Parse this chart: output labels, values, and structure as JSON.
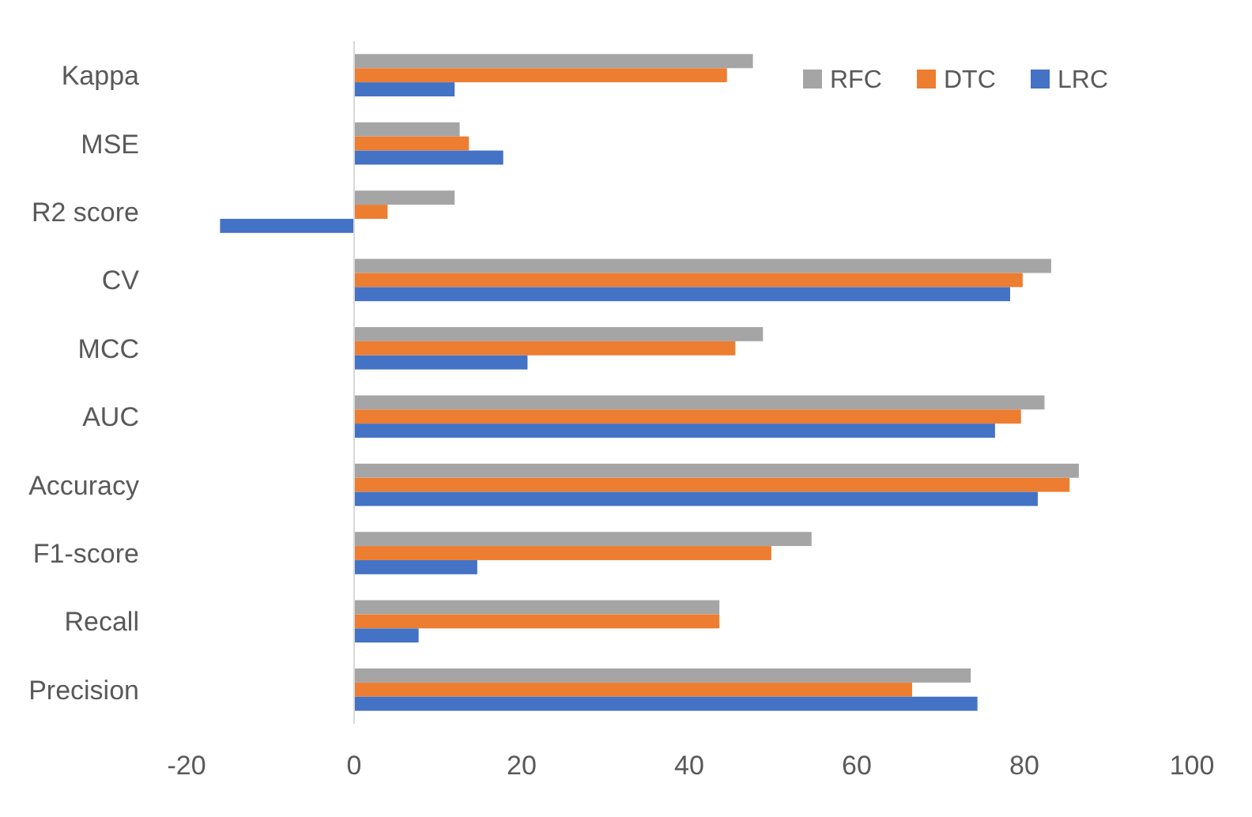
{
  "chart_data": {
    "type": "bar",
    "orientation": "horizontal",
    "categories": [
      "Kappa",
      "MSE",
      "R2 score",
      "CV",
      "MCC",
      "AUC",
      "Accuracy",
      "F1-score",
      "Recall",
      "Precision"
    ],
    "series": [
      {
        "name": "RFC",
        "color": "#a5a5a5",
        "values": [
          47.6,
          12.6,
          12,
          83.2,
          48.8,
          82.4,
          86.5,
          54.6,
          43.6,
          73.6
        ]
      },
      {
        "name": "DTC",
        "color": "#ed7d31",
        "values": [
          44.5,
          13.7,
          4,
          79.8,
          45.5,
          79.6,
          85.4,
          49.8,
          43.6,
          66.6
        ]
      },
      {
        "name": "LRC",
        "color": "#4472c4",
        "values": [
          12,
          17.8,
          -16,
          78.3,
          20.7,
          76.5,
          81.6,
          14.7,
          7.7,
          74.4
        ]
      }
    ],
    "xlim": [
      -20,
      100
    ],
    "xticks": [
      -20,
      0,
      20,
      40,
      60,
      80,
      100
    ],
    "legend": "top right"
  }
}
